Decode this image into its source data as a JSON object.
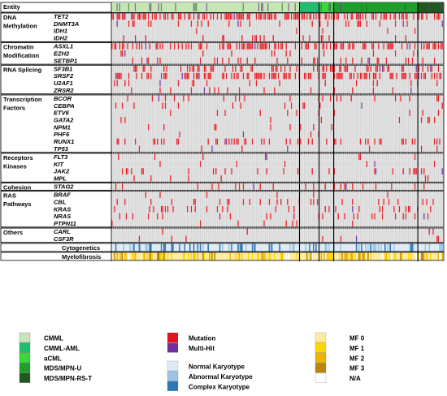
{
  "chart_data": {
    "type": "heatmap",
    "entity_label": "Entity",
    "entities": [
      {
        "name": "CMML",
        "share": 0.566,
        "color": "#c6e6b4"
      },
      {
        "name": "CMML-AML",
        "share": 0.059,
        "color": "#1fbe6e"
      },
      {
        "name": "aCML",
        "share": 0.044,
        "color": "#38d838"
      },
      {
        "name": "MDS/MPN-U",
        "share": 0.253,
        "color": "#1e9e2a"
      },
      {
        "name": "MDS/MPN-RS-T",
        "share": 0.078,
        "color": "#1e5a1e"
      }
    ],
    "groups": [
      {
        "label": [
          "DNA",
          "Methylation"
        ],
        "genes": [
          "TET2",
          "DNMT3A",
          "IDH1",
          "IDH2"
        ]
      },
      {
        "label": [
          "Chromatin",
          "Modification"
        ],
        "genes": [
          "ASXL1",
          "EZH2",
          "SETBP1"
        ]
      },
      {
        "label": [
          "RNA Splicing"
        ],
        "genes": [
          "SF3B1",
          "SRSF2",
          "U2AF1",
          "ZRSR2"
        ]
      },
      {
        "label": [
          "Transcription",
          "Factors"
        ],
        "genes": [
          "BCOR",
          "CEBPA",
          "ETV6",
          "GATA2",
          "NPM1",
          "PHF6",
          "RUNX1",
          "TP53"
        ]
      },
      {
        "label": [
          "Receptors",
          "Kinases"
        ],
        "genes": [
          "FLT3",
          "KIT",
          "JAK2",
          "MPL"
        ]
      },
      {
        "label": [
          "Cohesion"
        ],
        "genes": [
          "STAG2"
        ]
      },
      {
        "label": [
          "RAS",
          "Pathways"
        ],
        "genes": [
          "BRAF",
          "CBL",
          "KRAS",
          "NRAS",
          "PTPN11"
        ]
      },
      {
        "label": [
          "Others"
        ],
        "genes": [
          "CARL",
          "CSF3R"
        ]
      }
    ],
    "mutation_frequency": {
      "TET2": 0.52,
      "DNMT3A": 0.12,
      "IDH1": 0.03,
      "IDH2": 0.06,
      "ASXL1": 0.42,
      "EZH2": 0.07,
      "SETBP1": 0.13,
      "SF3B1": 0.22,
      "SRSF2": 0.4,
      "U2AF1": 0.07,
      "ZRSR2": 0.06,
      "BCOR": 0.06,
      "CEBPA": 0.04,
      "ETV6": 0.04,
      "GATA2": 0.04,
      "NPM1": 0.02,
      "PHF6": 0.03,
      "RUNX1": 0.16,
      "TP53": 0.04,
      "FLT3": 0.03,
      "KIT": 0.04,
      "JAK2": 0.14,
      "MPL": 0.02,
      "STAG2": 0.08,
      "BRAF": 0.02,
      "CBL": 0.12,
      "KRAS": 0.08,
      "NRAS": 0.09,
      "PTPN11": 0.04,
      "CARL": 0.01,
      "CSF3R": 0.02
    },
    "annotation_rows": [
      "Cytogenetics",
      "Myelofibrosis"
    ],
    "legend": {
      "entities": [
        "CMML",
        "CMML-AML",
        "aCML",
        "MDS/MPN-U",
        "MDS/MPN-RS-T"
      ],
      "mutation": [
        {
          "name": "Mutation",
          "color": "#e3141b"
        },
        {
          "name": "Multi-Hit",
          "color": "#7030a0"
        }
      ],
      "karyotype": [
        {
          "name": "Normal Karyotype",
          "color": "#ddebf7"
        },
        {
          "name": "Abnormal Karyotype",
          "color": "#9dc3e6"
        },
        {
          "name": "Complex Karyotype",
          "color": "#2e75b6"
        }
      ],
      "myelofibrosis": [
        {
          "name": "MF 0",
          "color": "#ffeb9c"
        },
        {
          "name": "MF 1",
          "color": "#ffd700"
        },
        {
          "name": "MF 2",
          "color": "#f0b400"
        },
        {
          "name": "MF 3",
          "color": "#b8860b"
        },
        {
          "name": "N/A",
          "color": "#ffffff"
        }
      ]
    },
    "colors": {
      "background_cell": "#d4d4d4",
      "mutation": "#e3141b",
      "multihit": "#7030a0"
    }
  }
}
